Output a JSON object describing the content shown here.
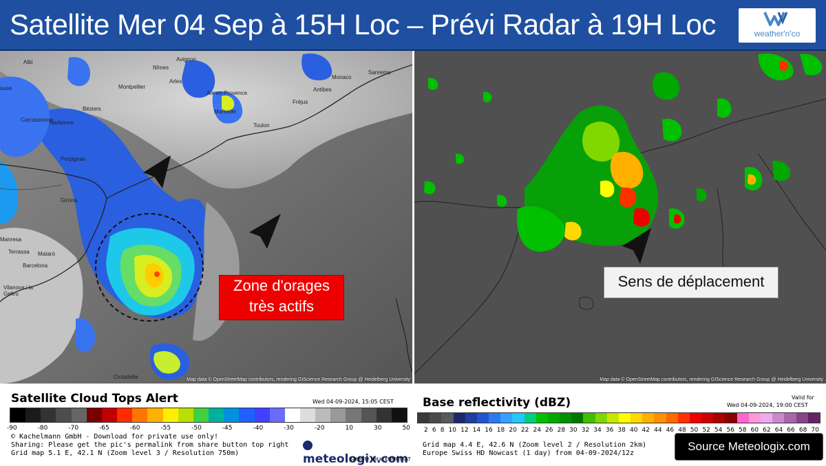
{
  "title": "Satellite Mer 04 Sep à 15H Loc – Prévi Radar à 19H Loc",
  "logo": {
    "text": "weather'n'co",
    "icon": "wnc-logo-icon"
  },
  "left_panel": {
    "credit": "Map data © OpenStreetMap contributors, rendering GIScience Research Group @ Heidelberg University",
    "places": [
      {
        "name": "Albi"
      },
      {
        "name": "Nîmes"
      },
      {
        "name": "Avignon"
      },
      {
        "name": "Montpellier"
      },
      {
        "name": "Arles"
      },
      {
        "name": "Aix-en-Provence"
      },
      {
        "name": "Marseille"
      },
      {
        "name": "Toulon"
      },
      {
        "name": "Béziers"
      },
      {
        "name": "Narbonne"
      },
      {
        "name": "Carcassonne"
      },
      {
        "name": "Perpignan"
      },
      {
        "name": "Girona"
      },
      {
        "name": "Barcelona"
      },
      {
        "name": "Mataró"
      },
      {
        "name": "Terrassa"
      },
      {
        "name": "Manresa"
      },
      {
        "name": "Vilanova i la Geltrú"
      },
      {
        "name": "Ciutadella"
      },
      {
        "name": "Monaco"
      },
      {
        "name": "Sanremo"
      },
      {
        "name": "Antibes"
      },
      {
        "name": "Fréjus"
      },
      {
        "name": "ouse"
      }
    ],
    "callout": {
      "line1": "Zone d'orages",
      "line2": "très actifs"
    }
  },
  "right_panel": {
    "credit": "Map data © OpenStreetMap contributors, rendering GIScience Research Group @ Heidelberg University",
    "callout": "Sens de déplacement"
  },
  "legend_left": {
    "title": "Satellite Cloud Tops Alert",
    "date": "Wed 04-09-2024, 15:05 CEST",
    "ticks": [
      "-90",
      "-80",
      "-70",
      "-65",
      "-60",
      "-55",
      "-50",
      "-45",
      "-40",
      "-30",
      "-20",
      "10",
      "30",
      "50"
    ],
    "colors": [
      "#000000",
      "#1a1a1a",
      "#333333",
      "#4d4d4d",
      "#666666",
      "#7a0000",
      "#c00000",
      "#ff2a00",
      "#ff7700",
      "#ffb000",
      "#ffee00",
      "#b8e000",
      "#40d040",
      "#00b0a0",
      "#0090e0",
      "#2060ff",
      "#4040ff",
      "#6a6aff",
      "#ffffff",
      "#dddddd",
      "#bbbbbb",
      "#999999",
      "#777777",
      "#555555",
      "#333333",
      "#111111"
    ],
    "info_lines": [
      "© Kachelmann GmbH - Download for private use only!",
      "Sharing: Please get the pic's permalink from share button top right",
      "Grid map 5.1 E, 42.1 N (Zoom level 3 / Resolution 750m)"
    ],
    "brand": "meteologix.com",
    "sat_source": "Satellite data: EUMETSAT"
  },
  "legend_right": {
    "title": "Base reflectivity (dBZ)",
    "valid_label": "Valid for",
    "date": "Wed 04-09-2024, 19:00 CEST",
    "ticks": [
      "2",
      "6",
      "8",
      "10",
      "12",
      "14",
      "16",
      "18",
      "20",
      "22",
      "24",
      "26",
      "28",
      "30",
      "32",
      "34",
      "36",
      "38",
      "40",
      "42",
      "44",
      "46",
      "48",
      "50",
      "52",
      "54",
      "56",
      "58",
      "60",
      "62",
      "64",
      "66",
      "68",
      "70"
    ],
    "colors": [
      "#3a3a3a",
      "#4a4a4a",
      "#5a5a5a",
      "#1a2a6a",
      "#1e3fa0",
      "#2255d0",
      "#2b7af0",
      "#36a0ff",
      "#22c8ff",
      "#00d07a",
      "#00c000",
      "#00a800",
      "#009000",
      "#007800",
      "#40c000",
      "#80d800",
      "#c8e800",
      "#ffff00",
      "#ffd800",
      "#ffb000",
      "#ff9000",
      "#ff6800",
      "#ff3000",
      "#ee0000",
      "#cc0000",
      "#aa0000",
      "#880000",
      "#ff66cc",
      "#ff99dd",
      "#eeaaee",
      "#cc88cc",
      "#aa66aa",
      "#884488",
      "#662266"
    ],
    "info_lines": [
      "Grid map 4.4 E, 42.6 N (Zoom level 2 / Resolution 2km)",
      "Europe Swiss HD Nowcast (1 day) from 04-09-2024/12z"
    ]
  },
  "source_badge": "Source Meteologix.com"
}
